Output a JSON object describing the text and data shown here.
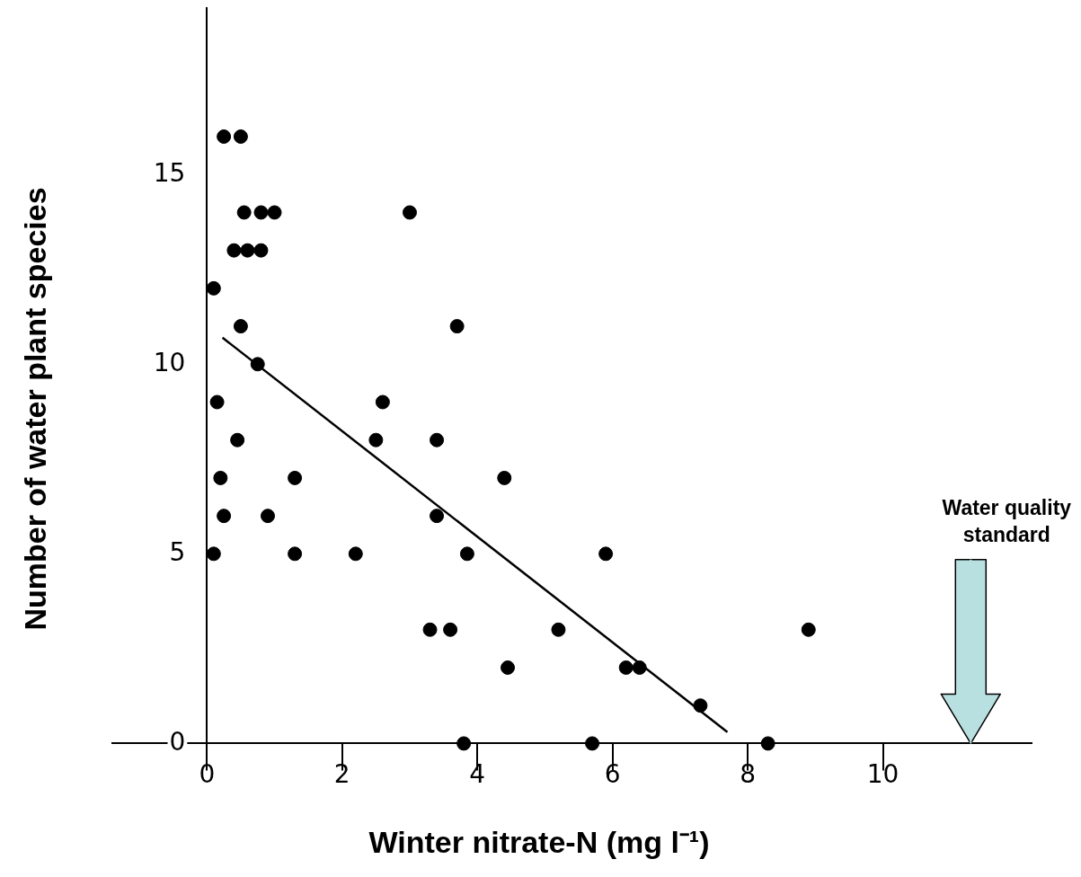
{
  "chart_data": {
    "type": "scatter",
    "xlabel": "Winter nitrate-N (mg l⁻¹)",
    "ylabel": "Number of water plant species",
    "xlim": [
      -1.4,
      12.2
    ],
    "ylim": [
      0,
      19.4
    ],
    "xticks": [
      0,
      2,
      4,
      6,
      8,
      10
    ],
    "yticks": [
      0,
      5,
      10,
      15
    ],
    "grid": false,
    "legend": false,
    "marker": "circle",
    "series": [
      {
        "type": "scatter",
        "color": "#000000",
        "x": [
          0.1,
          0.25,
          0.5,
          0.55,
          0.8,
          1.0,
          0.4,
          0.6,
          0.8,
          0.5,
          0.75,
          0.15,
          0.45,
          0.2,
          1.3,
          0.25,
          0.9,
          0.1,
          1.3,
          2.2,
          2.6,
          2.5,
          3.0,
          3.7,
          3.4,
          3.4,
          3.85,
          4.4,
          3.3,
          3.6,
          5.2,
          4.45,
          5.9,
          6.2,
          6.4,
          7.3,
          8.9,
          3.8,
          5.7,
          8.3
        ],
        "values": [
          12,
          16,
          16,
          14,
          14,
          14,
          13,
          13,
          13,
          11,
          10,
          9,
          8,
          7,
          7,
          6,
          6,
          5,
          5,
          5,
          9,
          8,
          14,
          11,
          8,
          6,
          5,
          7,
          3,
          3,
          3,
          2,
          5,
          2,
          2,
          1,
          3,
          0,
          0,
          0
        ]
      },
      {
        "type": "line",
        "color": "#000000",
        "marker": "none",
        "x": [
          0.23,
          7.7
        ],
        "values": [
          10.7,
          0.3
        ]
      }
    ],
    "ref_lines": [
      {
        "axis": "x",
        "value": 11.3,
        "label": "Water quality standard",
        "color": "#b9e0e0"
      }
    ]
  }
}
